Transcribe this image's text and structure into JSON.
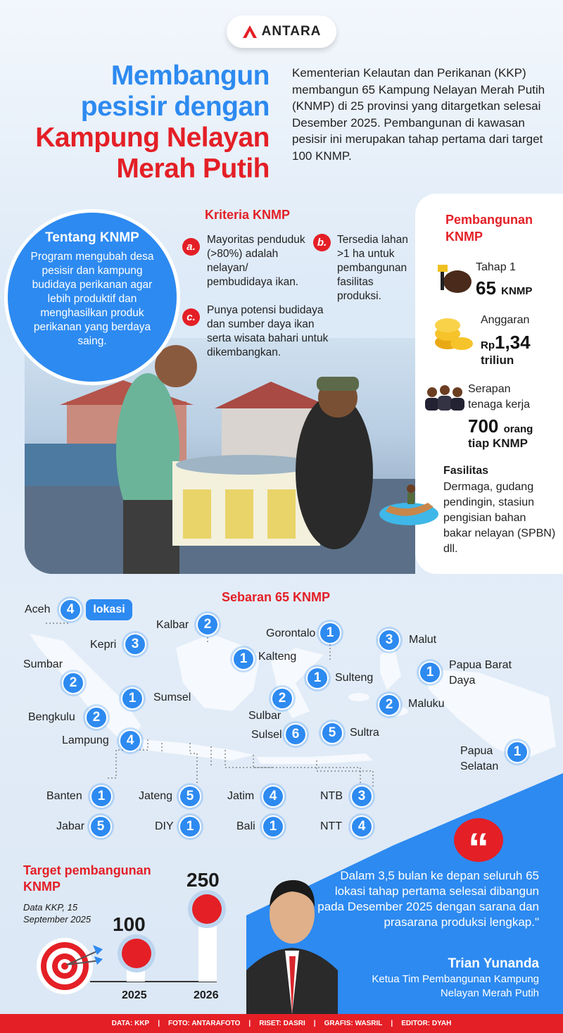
{
  "logo": {
    "text": "ANTARA"
  },
  "title": {
    "lines": [
      "Membangun",
      "pesisir dengan",
      "Kampung Nelayan",
      "Merah Putih"
    ]
  },
  "intro": "Kementerian Kelautan dan Perikanan (KKP) membangun 65 Kampung Nelayan Merah Putih (KNMP) di 25 provinsi yang ditargetkan selesai Desember 2025. Pembangunan di kawasan pesisir ini merupakan tahap pertama dari target 100 KNMP.",
  "about": {
    "title": "Tentang KNMP",
    "text": "Program mengubah desa pesisir dan kampung budidaya perikanan agar lebih produktif dan menghasilkan produk perikanan yang berdaya saing."
  },
  "criteria": {
    "title": "Kriteria KNMP",
    "items": [
      {
        "badge": "a.",
        "text": "Mayoritas penduduk (>80%) adalah nelayan/ pembudidaya ikan."
      },
      {
        "badge": "b.",
        "text": "Tersedia lahan >1 ha untuk pembangunan fasilitas produksi."
      },
      {
        "badge": "c.",
        "text": "Punya potensi budidaya dan sumber daya ikan serta wisata bahari untuk dikembangkan."
      }
    ]
  },
  "development": {
    "title": "Pembangunan KNMP",
    "stage": {
      "label": "Tahap 1",
      "value": "65",
      "unit": "KNMP",
      "icon": "fishing-net-icon"
    },
    "budget": {
      "label": "Anggaran",
      "prefix": "Rp",
      "value": "1,34",
      "unit": "triliun",
      "icon": "coins-icon"
    },
    "workers": {
      "label": "Serapan tenaga kerja",
      "value": "700",
      "unit": "orang",
      "suffix": "tiap KNMP",
      "icon": "people-icon"
    },
    "facilities": {
      "label": "Fasilitas",
      "text": "Dermaga, gudang pendingin, stasiun pengisian bahan bakar nelayan (SPBN) dll.",
      "icon": "boat-icon"
    }
  },
  "map": {
    "title": "Sebaran 65 KNMP",
    "unit_label": "lokasi",
    "regions": [
      {
        "name": "Aceh",
        "count": "4"
      },
      {
        "name": "Kalbar",
        "count": "2"
      },
      {
        "name": "Kepri",
        "count": "3"
      },
      {
        "name": "Gorontalo",
        "count": "1"
      },
      {
        "name": "Malut",
        "count": "3"
      },
      {
        "name": "Kalteng",
        "count": "1"
      },
      {
        "name": "Sumbar",
        "count": "2"
      },
      {
        "name": "Papua Barat Daya",
        "count": "1"
      },
      {
        "name": "Sulteng",
        "count": "1"
      },
      {
        "name": "Sumsel",
        "count": "1"
      },
      {
        "name": "Sulbar",
        "count": "2"
      },
      {
        "name": "Maluku",
        "count": "2"
      },
      {
        "name": "Bengkulu",
        "count": "2"
      },
      {
        "name": "Lampung",
        "count": "4"
      },
      {
        "name": "Sulsel",
        "count": "6"
      },
      {
        "name": "Sultra",
        "count": "5"
      },
      {
        "name": "Papua Selatan",
        "count": "1"
      },
      {
        "name": "Banten",
        "count": "1"
      },
      {
        "name": "Jateng",
        "count": "5"
      },
      {
        "name": "Jatim",
        "count": "4"
      },
      {
        "name": "NTB",
        "count": "3"
      },
      {
        "name": "Jabar",
        "count": "5"
      },
      {
        "name": "DIY",
        "count": "1"
      },
      {
        "name": "Bali",
        "count": "1"
      },
      {
        "name": "NTT",
        "count": "4"
      }
    ]
  },
  "target": {
    "title": "Target pembangunan KNMP",
    "source": "Data KKP, 15 September 2025",
    "points": [
      {
        "year": "2025",
        "value": "100"
      },
      {
        "year": "2026",
        "value": "250"
      }
    ]
  },
  "quote": {
    "text": "Dalam 3,5 bulan ke depan seluruh 65 lokasi tahap pertama selesai dibangun pada Desember 2025 dengan sarana dan prasarana produksi lengkap.\"",
    "name": "Trian Yunanda",
    "role": "Ketua Tim Pembangunan Kampung Nelayan Merah Putih"
  },
  "footer": [
    "DATA: KKP",
    "|",
    "FOTO: ANTARAFOTO",
    "|",
    "RISET: DASRI",
    "|",
    "GRAFIS: WASRIL",
    "|",
    "EDITOR: DYAH"
  ],
  "colors": {
    "blue": "#2d8af0",
    "red": "#e41f26"
  }
}
